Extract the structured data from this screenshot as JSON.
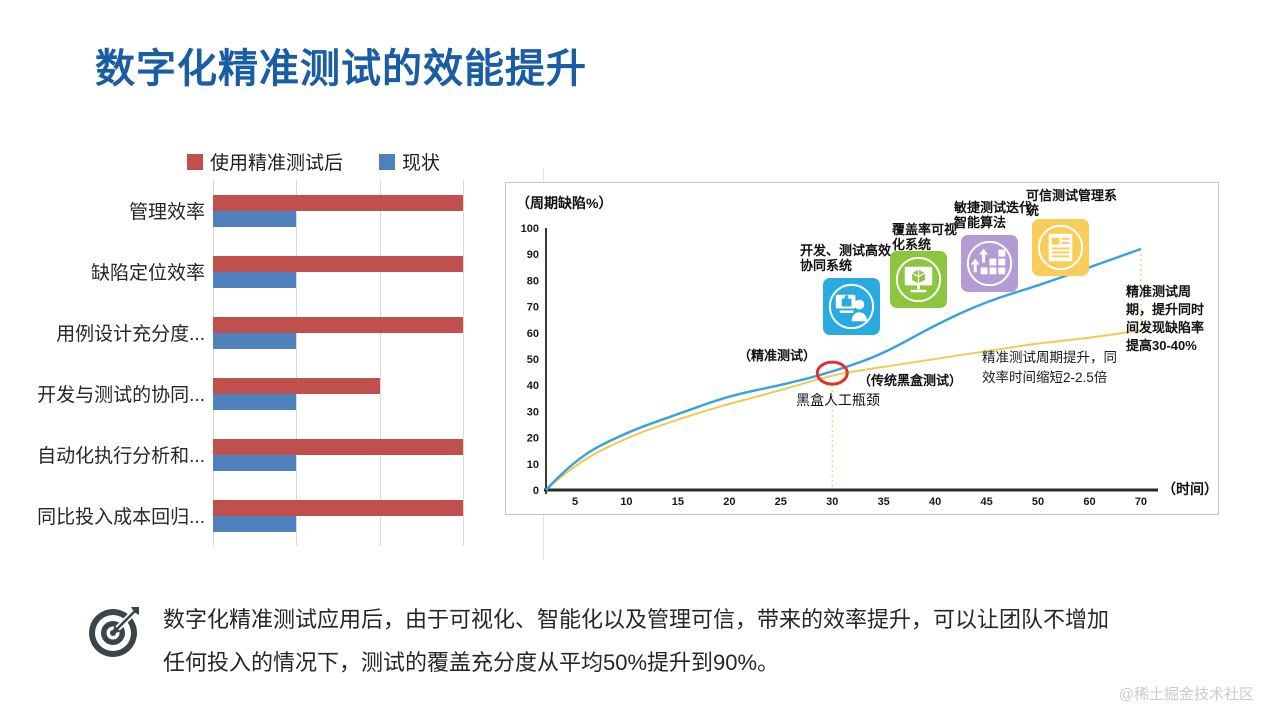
{
  "title": "数字化精准测试的效能提升",
  "chart_data": [
    {
      "type": "bar",
      "orientation": "horizontal",
      "legend": [
        {
          "label": "使用精准测试后",
          "color": "#C0504D"
        },
        {
          "label": "现状",
          "color": "#4F81BD"
        }
      ],
      "categories": [
        "管理效率",
        "缺陷定位效率",
        "用例设计充分度...",
        "开发与测试的协同...",
        "自动化执行分析和...",
        "同比投入成本回归..."
      ],
      "series": [
        {
          "name": "使用精准测试后",
          "color": "#C0504D",
          "values": [
            3,
            3,
            3,
            2,
            3,
            3
          ]
        },
        {
          "name": "现状",
          "color": "#4F81BD",
          "values": [
            1,
            1,
            1,
            1,
            1,
            1
          ]
        }
      ],
      "xlim": [
        0,
        3
      ],
      "gridlines": [
        0,
        1,
        2,
        3
      ],
      "grid_color": "#D9D9D9"
    },
    {
      "type": "line",
      "ylabel": "（周期缺陷%）",
      "xlabel": "（时间）",
      "y_ticks": [
        0,
        10,
        20,
        30,
        40,
        50,
        60,
        70,
        80,
        90,
        100
      ],
      "x_ticks": [
        5,
        10,
        15,
        20,
        25,
        30,
        35,
        40,
        45,
        50,
        60,
        70
      ],
      "ylim": [
        0,
        100
      ],
      "series": [
        {
          "name": "精准测试",
          "color": "#35A3DC",
          "x": [
            0,
            5,
            10,
            15,
            20,
            25,
            30,
            35,
            40,
            45,
            50,
            60,
            70
          ],
          "y": [
            0,
            12,
            22,
            29,
            36,
            40,
            45,
            52,
            63,
            72,
            78,
            85,
            92
          ]
        },
        {
          "name": "传统黑盒测试",
          "color": "#F2CA55",
          "x": [
            0,
            5,
            10,
            15,
            20,
            25,
            30,
            35,
            40,
            45,
            50,
            60,
            70
          ],
          "y": [
            0,
            10,
            20,
            27,
            33,
            38,
            44,
            47,
            50,
            53,
            56,
            58,
            61
          ]
        }
      ],
      "annotations": {
        "precise_label": "（精准测试）",
        "blackbox_label": "（传统黑盒测试）",
        "bottleneck_label": "黑盒人工瓶颈",
        "bottleneck_x": 30,
        "circle_color": "#E0312A",
        "note_mid": "精准测试周期提升，同效率时间缩短2-2.5倍",
        "note_right": "精准测试周期，提升同时间发现缺陷率提高30-40%"
      },
      "milestones": [
        {
          "label": "开发、测试高效协同系统",
          "color": "#29ABE2",
          "icon": "collaboration-icon"
        },
        {
          "label": "覆盖率可视化系统",
          "color": "#8CC63F",
          "icon": "coverage-monitor-icon"
        },
        {
          "label": "敏捷测试迭代智能算法",
          "color": "#B59BD6",
          "icon": "agile-algorithm-icon"
        },
        {
          "label": "可信测试管理系统",
          "color": "#F8CE58",
          "icon": "trusted-management-icon"
        }
      ]
    }
  ],
  "summary": {
    "icon": "target-icon",
    "line1": "数字化精准测试应用后，由于可视化、智能化以及管理可信，带来的效率提升，可以让团队不增加",
    "line2": "任何投入的情况下，测试的覆盖充分度从平均50%提升到90%。"
  },
  "watermark": "@稀土掘金技术社区"
}
